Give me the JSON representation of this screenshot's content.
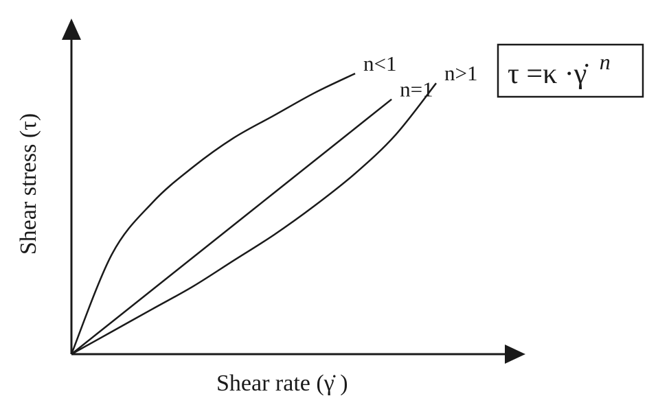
{
  "chart_data": {
    "type": "line",
    "title": "",
    "xlabel": "Shear rate (γ̇ )",
    "ylabel": "Shear stress (τ)",
    "xlim": [
      0,
      1
    ],
    "ylim": [
      0,
      1
    ],
    "grid": false,
    "legend": "inline-labels",
    "series": [
      {
        "name": "n<1",
        "x": [
          0,
          0.1,
          0.2,
          0.3,
          0.4,
          0.5,
          0.6,
          0.7
        ],
        "y": [
          0,
          0.31,
          0.47,
          0.58,
          0.67,
          0.74,
          0.81,
          0.87
        ]
      },
      {
        "name": "n=1",
        "x": [
          0,
          0.1,
          0.2,
          0.3,
          0.4,
          0.5,
          0.6,
          0.7,
          0.79
        ],
        "y": [
          0,
          0.1,
          0.2,
          0.3,
          0.4,
          0.5,
          0.6,
          0.7,
          0.79
        ]
      },
      {
        "name": "n>1",
        "x": [
          0,
          0.1,
          0.2,
          0.3,
          0.4,
          0.5,
          0.6,
          0.7,
          0.8,
          0.9
        ],
        "y": [
          0,
          0.07,
          0.14,
          0.21,
          0.29,
          0.37,
          0.46,
          0.56,
          0.68,
          0.84
        ]
      }
    ],
    "formula": {
      "main": "τ =κ ·γ̇",
      "exponent": "n"
    }
  }
}
